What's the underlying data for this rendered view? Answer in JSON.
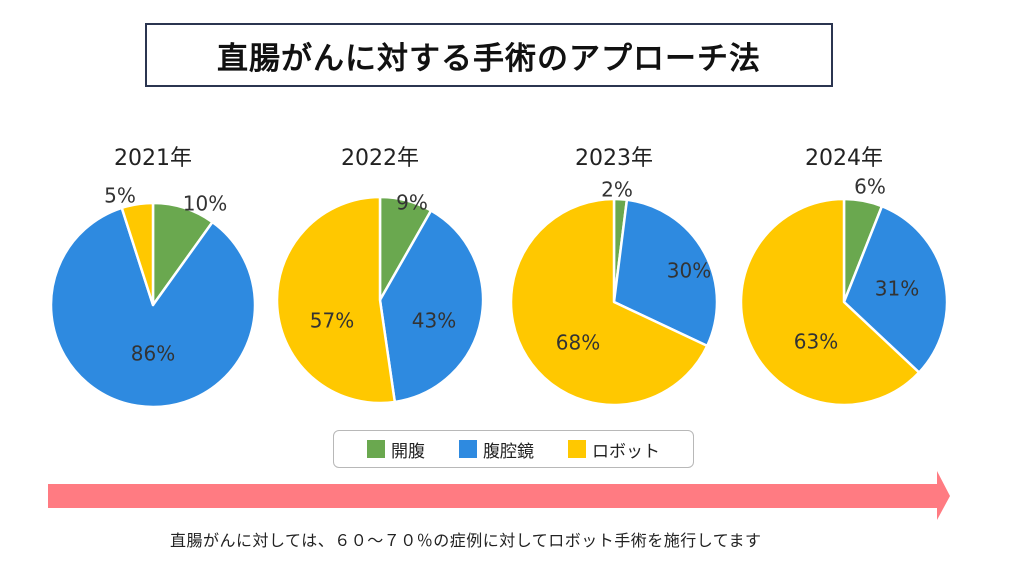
{
  "title": "直腸がんに対する手術のアプローチ法",
  "colors": {
    "open": "#6aa84f",
    "laparoscopic": "#2e8ae0",
    "robot": "#ffc800",
    "arrow": "#ff7b82",
    "title_border": "#2b3550"
  },
  "legend": [
    {
      "key": "open",
      "label": "開腹"
    },
    {
      "key": "laparoscopic",
      "label": "腹腔鏡"
    },
    {
      "key": "robot",
      "label": "ロボット"
    }
  ],
  "caption": "直腸がんに対しては、６０～７０％の症例に対してロボット手術を施行してます",
  "chart_data": [
    {
      "type": "pie",
      "title": "2021年",
      "categories": [
        "開腹",
        "腹腔鏡",
        "ロボット"
      ],
      "values": [
        10,
        86,
        5
      ],
      "labels": [
        "10%",
        "86%",
        "5%"
      ]
    },
    {
      "type": "pie",
      "title": "2022年",
      "categories": [
        "開腹",
        "腹腔鏡",
        "ロボット"
      ],
      "values": [
        9,
        43,
        57
      ],
      "labels": [
        "9%",
        "43%",
        "57%"
      ]
    },
    {
      "type": "pie",
      "title": "2023年",
      "categories": [
        "開腹",
        "腹腔鏡",
        "ロボット"
      ],
      "values": [
        2,
        30,
        68
      ],
      "labels": [
        "2%",
        "30%",
        "68%"
      ]
    },
    {
      "type": "pie",
      "title": "2024年",
      "categories": [
        "開腹",
        "腹腔鏡",
        "ロボット"
      ],
      "values": [
        6,
        31,
        63
      ],
      "labels": [
        "6%",
        "31%",
        "63%"
      ]
    }
  ]
}
